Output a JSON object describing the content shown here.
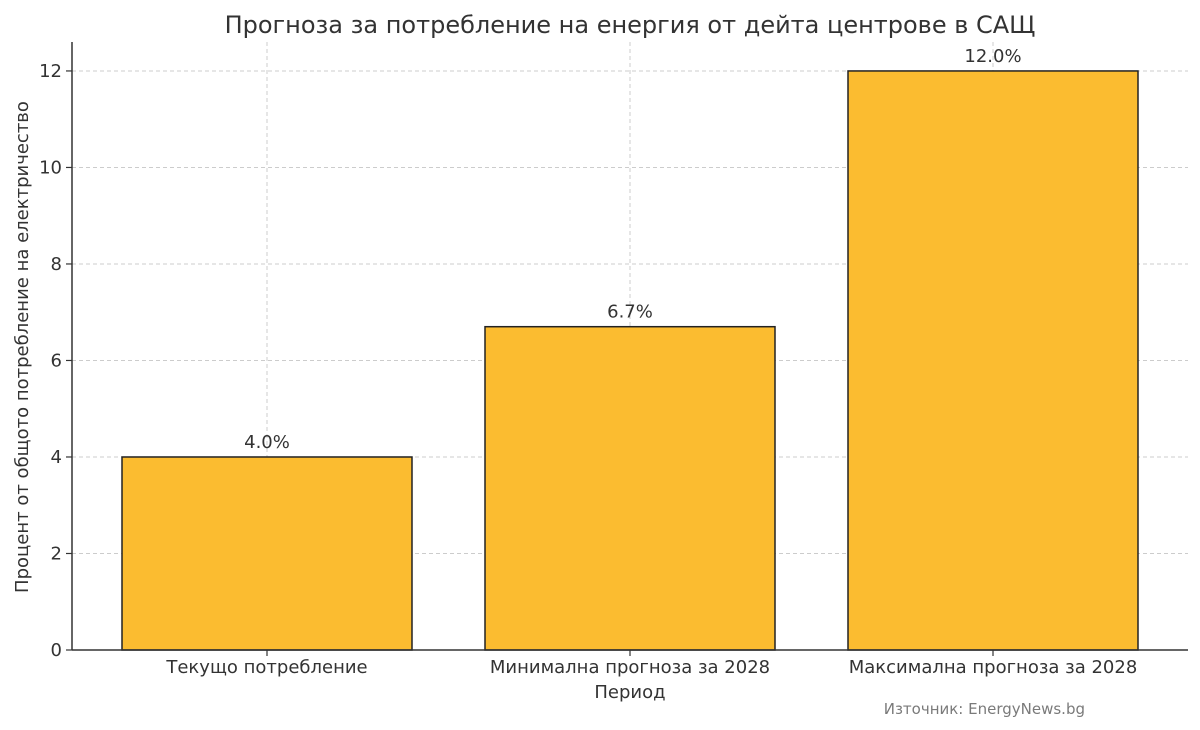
{
  "chart_data": {
    "type": "bar",
    "title": "Прогноза за потребление на енергия от дейта центрове в САЩ",
    "xlabel": "Период",
    "ylabel": "Процент от общото потребление на електричество",
    "categories": [
      "Текущо потребление",
      "Минимална прогноза за 2028",
      "Максимална прогноза за 2028"
    ],
    "values": [
      4.0,
      6.7,
      12.0
    ],
    "value_labels": [
      "4.0%",
      "6.7%",
      "12.0%"
    ],
    "ylim": [
      0,
      12.6
    ],
    "yticks": [
      0,
      2,
      4,
      6,
      8,
      10,
      12
    ],
    "ytick_labels": [
      "0",
      "2",
      "4",
      "6",
      "8",
      "10",
      "12"
    ],
    "grid": true,
    "bar_color": "#FBBC30",
    "edge_color": "#222222"
  },
  "source": {
    "text": "Източник: EnergyNews.bg"
  }
}
